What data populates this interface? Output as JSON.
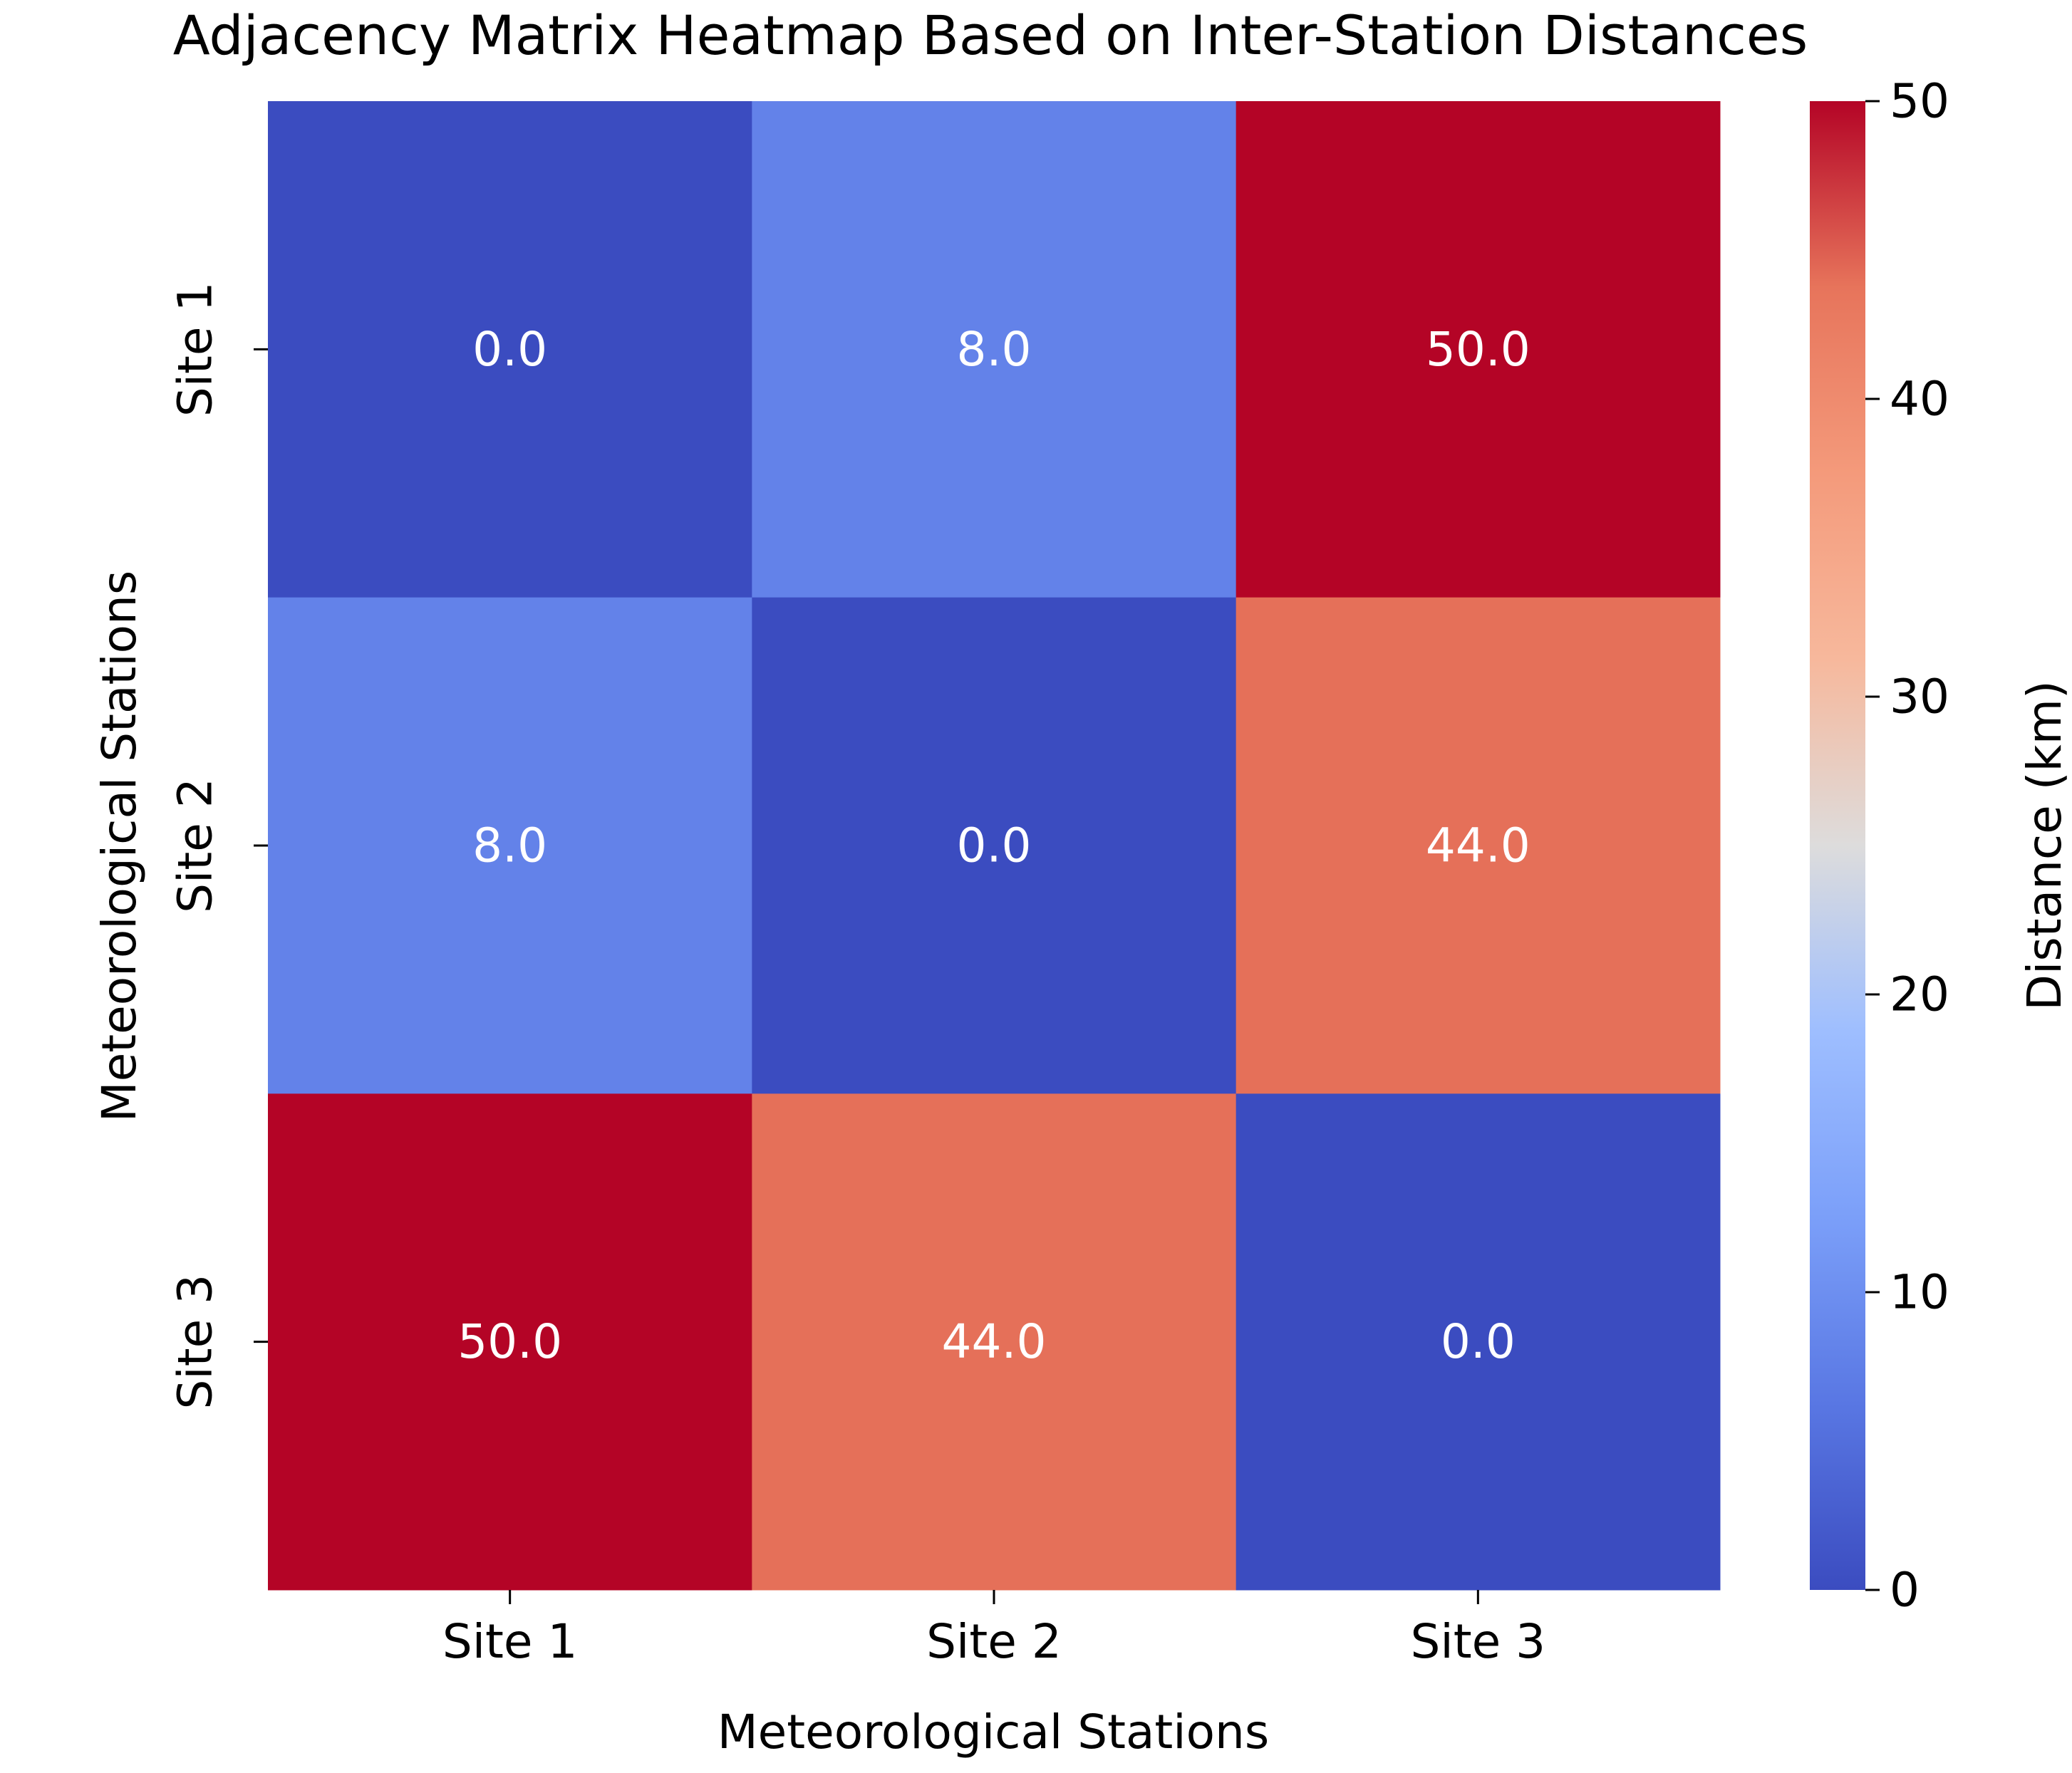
{
  "chart_data": {
    "type": "heatmap",
    "title": "Adjacency Matrix Heatmap Based on Inter-Station Distances",
    "xlabel": "Meteorological Stations",
    "ylabel": "Meteorological Stations",
    "x_categories": [
      "Site 1",
      "Site 2",
      "Site 3"
    ],
    "y_categories": [
      "Site 1",
      "Site 2",
      "Site 3"
    ],
    "values": [
      [
        0.0,
        8.0,
        50.0
      ],
      [
        8.0,
        0.0,
        44.0
      ],
      [
        50.0,
        44.0,
        0.0
      ]
    ],
    "value_labels": [
      [
        "0.0",
        "8.0",
        "50.0"
      ],
      [
        "8.0",
        "0.0",
        "44.0"
      ],
      [
        "50.0",
        "44.0",
        "0.0"
      ]
    ],
    "colormap": "coolwarm",
    "colorbar": {
      "label": "Distance (km)",
      "min": 0,
      "max": 50,
      "ticks": [
        0,
        10,
        20,
        30,
        40,
        50
      ],
      "tick_labels": [
        "0",
        "10",
        "20",
        "30",
        "40",
        "50"
      ]
    },
    "grid": false,
    "legend": "colorbar-right"
  }
}
